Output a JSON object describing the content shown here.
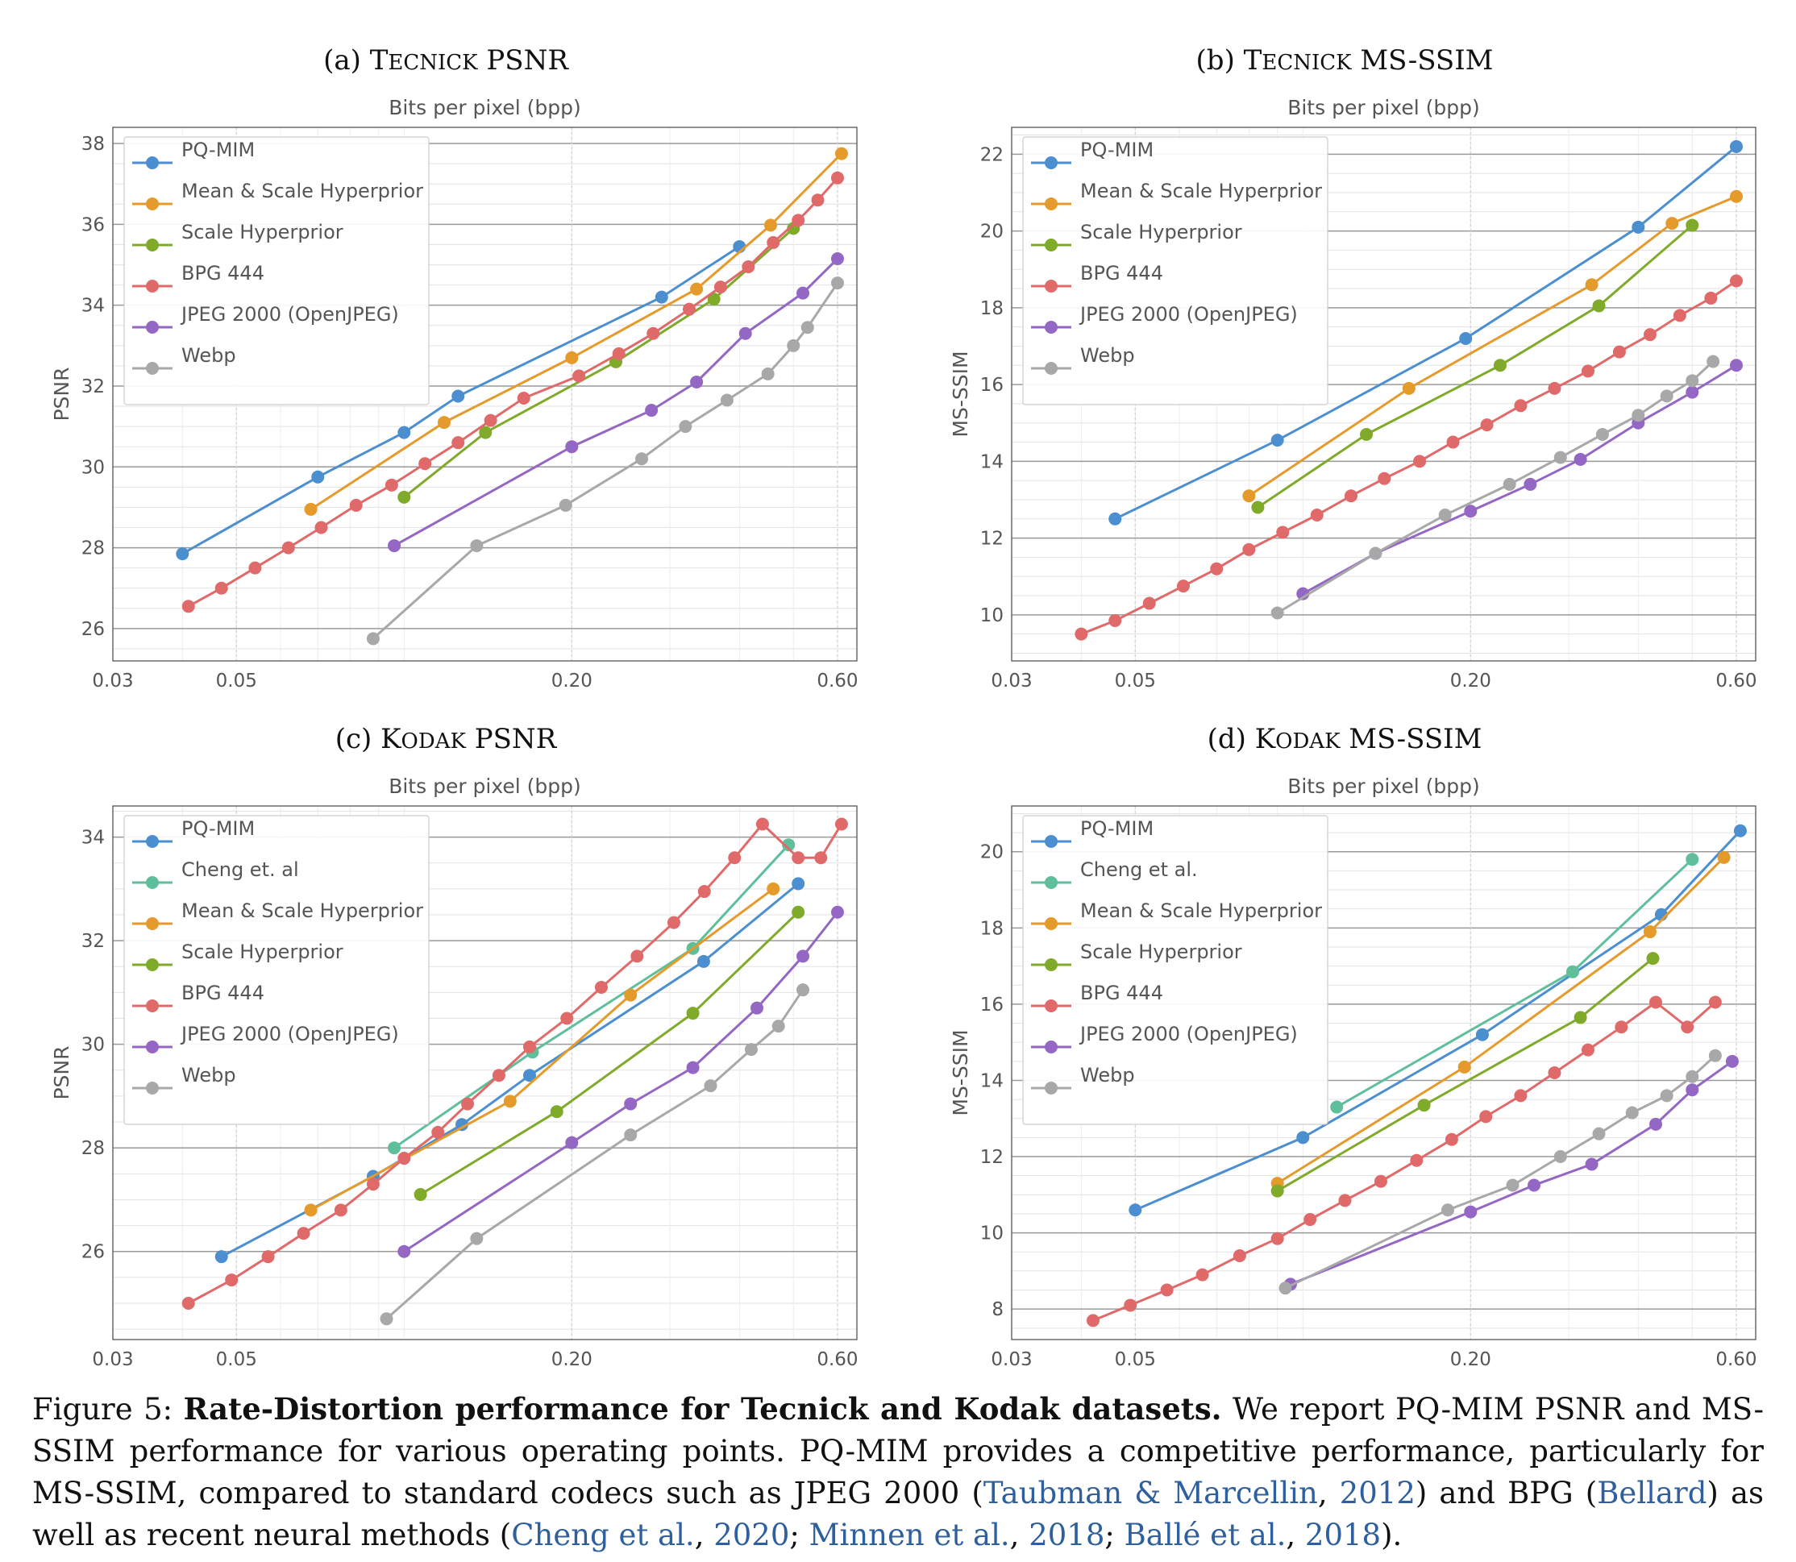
{
  "colors": {
    "PQ-MIM": "#4c8fd0",
    "Cheng": "#5fbf9a",
    "Mean & Scale Hyperprior": "#e59a2c",
    "Scale Hyperprior": "#7faa2a",
    "BPG 444": "#e06a6a",
    "JPEG 2000 (OpenJPEG)": "#9467c4",
    "Webp": "#a8a8a8"
  },
  "chart_data": [
    {
      "id": "a",
      "type": "line",
      "title": "(a) TECNICK PSNR",
      "xlabel": "Bits per pixel (bpp)",
      "ylabel": "PSNR",
      "xscale": "log",
      "xlim": [
        0.03,
        0.65
      ],
      "ylim": [
        25.2,
        38.4
      ],
      "xticks": [
        0.03,
        0.05,
        0.2,
        0.6
      ],
      "xtick_labels": [
        "0.03",
        "0.05",
        "0.20",
        "0.60"
      ],
      "yticks": [
        26,
        28,
        30,
        32,
        34,
        36,
        38
      ],
      "ytick_labels": [
        "26",
        "28",
        "30",
        "32",
        "34",
        "36",
        "38"
      ],
      "legend_position": "upper-left",
      "grid": true,
      "series": [
        {
          "name": "PQ-MIM",
          "x": [
            0.04,
            0.07,
            0.1,
            0.125,
            0.29,
            0.4
          ],
          "y": [
            27.85,
            29.75,
            30.85,
            31.75,
            34.2,
            35.45
          ]
        },
        {
          "name": "Mean & Scale Hyperprior",
          "x": [
            0.068,
            0.118,
            0.2,
            0.335,
            0.455,
            0.61
          ],
          "y": [
            28.95,
            31.1,
            32.7,
            34.4,
            35.98,
            37.75
          ]
        },
        {
          "name": "Scale Hyperprior",
          "x": [
            0.1,
            0.14,
            0.24,
            0.36,
            0.5
          ],
          "y": [
            29.25,
            30.85,
            32.6,
            34.15,
            35.9
          ]
        },
        {
          "name": "BPG 444",
          "x": [
            0.041,
            0.047,
            0.054,
            0.062,
            0.071,
            0.082,
            0.095,
            0.109,
            0.125,
            0.143,
            0.164,
            0.206,
            0.243,
            0.28,
            0.325,
            0.37,
            0.415,
            0.46,
            0.51,
            0.553,
            0.6
          ],
          "y": [
            26.55,
            27.0,
            27.5,
            28.0,
            28.5,
            29.05,
            29.55,
            30.08,
            30.6,
            31.15,
            31.7,
            32.25,
            32.8,
            33.3,
            33.9,
            34.45,
            34.95,
            35.55,
            36.1,
            36.6,
            37.15
          ]
        },
        {
          "name": "JPEG 2000 (OpenJPEG)",
          "x": [
            0.096,
            0.2,
            0.278,
            0.335,
            0.41,
            0.52,
            0.6
          ],
          "y": [
            28.05,
            30.5,
            31.4,
            32.1,
            33.3,
            34.3,
            35.15
          ]
        },
        {
          "name": "Webp",
          "x": [
            0.088,
            0.135,
            0.195,
            0.267,
            0.32,
            0.38,
            0.45,
            0.5,
            0.53,
            0.6
          ],
          "y": [
            25.75,
            28.05,
            29.05,
            30.2,
            31.0,
            31.65,
            32.3,
            33.0,
            33.45,
            34.55
          ]
        }
      ]
    },
    {
      "id": "b",
      "type": "line",
      "title": "(b) TECNICK MS-SSIM",
      "xlabel": "Bits per pixel (bpp)",
      "ylabel": "MS-SSIM",
      "xscale": "log",
      "xlim": [
        0.03,
        0.65
      ],
      "ylim": [
        8.8,
        22.7
      ],
      "xticks": [
        0.03,
        0.05,
        0.2,
        0.6
      ],
      "xtick_labels": [
        "0.03",
        "0.05",
        "0.20",
        "0.60"
      ],
      "yticks": [
        10,
        12,
        14,
        16,
        18,
        20,
        22
      ],
      "ytick_labels": [
        "10",
        "12",
        "14",
        "16",
        "18",
        "20",
        "22"
      ],
      "legend_position": "upper-left",
      "grid": true,
      "series": [
        {
          "name": "PQ-MIM",
          "x": [
            0.046,
            0.09,
            0.196,
            0.4,
            0.6
          ],
          "y": [
            12.5,
            14.55,
            17.2,
            20.1,
            22.2
          ]
        },
        {
          "name": "Mean & Scale Hyperprior",
          "x": [
            0.08,
            0.155,
            0.33,
            0.46,
            0.6
          ],
          "y": [
            13.1,
            15.9,
            18.6,
            20.2,
            20.9
          ]
        },
        {
          "name": "Scale Hyperprior",
          "x": [
            0.083,
            0.13,
            0.226,
            0.34,
            0.5
          ],
          "y": [
            12.8,
            14.7,
            16.5,
            18.05,
            20.15
          ]
        },
        {
          "name": "BPG 444",
          "x": [
            0.04,
            0.046,
            0.053,
            0.061,
            0.07,
            0.08,
            0.092,
            0.106,
            0.122,
            0.14,
            0.162,
            0.186,
            0.214,
            0.246,
            0.283,
            0.325,
            0.37,
            0.42,
            0.475,
            0.54,
            0.6
          ],
          "y": [
            9.5,
            9.85,
            10.3,
            10.75,
            11.2,
            11.7,
            12.15,
            12.6,
            13.1,
            13.55,
            14.0,
            14.5,
            14.95,
            15.45,
            15.9,
            16.35,
            16.85,
            17.3,
            17.8,
            18.25,
            18.7
          ]
        },
        {
          "name": "JPEG 2000 (OpenJPEG)",
          "x": [
            0.1,
            0.135,
            0.2,
            0.256,
            0.315,
            0.4,
            0.5,
            0.6
          ],
          "y": [
            10.55,
            11.6,
            12.7,
            13.4,
            14.05,
            15.0,
            15.8,
            16.5
          ]
        },
        {
          "name": "Webp",
          "x": [
            0.09,
            0.135,
            0.18,
            0.235,
            0.29,
            0.345,
            0.4,
            0.45,
            0.5,
            0.545
          ],
          "y": [
            10.05,
            11.6,
            12.6,
            13.4,
            14.1,
            14.7,
            15.2,
            15.7,
            16.1,
            16.6
          ]
        }
      ]
    },
    {
      "id": "c",
      "type": "line",
      "title": "(c) KODAK PSNR",
      "xlabel": "Bits per pixel (bpp)",
      "ylabel": "PSNR",
      "xscale": "log",
      "xlim": [
        0.03,
        0.65
      ],
      "ylim": [
        24.3,
        34.6
      ],
      "xticks": [
        0.03,
        0.05,
        0.2,
        0.6
      ],
      "xtick_labels": [
        "0.03",
        "0.05",
        "0.20",
        "0.60"
      ],
      "yticks": [
        26,
        28,
        30,
        32,
        34
      ],
      "ytick_labels": [
        "26",
        "28",
        "30",
        "32",
        "34"
      ],
      "legend_position": "upper-left",
      "grid": true,
      "series": [
        {
          "name": "PQ-MIM",
          "x": [
            0.047,
            0.088,
            0.127,
            0.168,
            0.345,
            0.51
          ],
          "y": [
            25.9,
            27.45,
            28.45,
            29.4,
            31.6,
            33.1
          ]
        },
        {
          "name": "Cheng et. al",
          "x": [
            0.096,
            0.17,
            0.33,
            0.49
          ],
          "y": [
            28.0,
            29.85,
            31.85,
            33.85
          ]
        },
        {
          "name": "Mean & Scale Hyperprior",
          "x": [
            0.068,
            0.155,
            0.255,
            0.46
          ],
          "y": [
            26.8,
            28.9,
            30.95,
            33.0
          ]
        },
        {
          "name": "Scale Hyperprior",
          "x": [
            0.107,
            0.188,
            0.33,
            0.51
          ],
          "y": [
            27.1,
            28.7,
            30.6,
            32.55
          ]
        },
        {
          "name": "BPG 444",
          "x": [
            0.041,
            0.049,
            0.057,
            0.066,
            0.077,
            0.088,
            0.1,
            0.115,
            0.13,
            0.148,
            0.168,
            0.196,
            0.226,
            0.262,
            0.305,
            0.346,
            0.392,
            0.44,
            0.51,
            0.56,
            0.61
          ],
          "y": [
            25.0,
            25.45,
            25.9,
            26.35,
            26.8,
            27.3,
            27.8,
            28.3,
            28.85,
            29.4,
            29.95,
            30.5,
            31.1,
            31.7,
            32.35,
            32.95,
            33.6,
            34.25,
            33.6,
            33.6,
            34.25
          ]
        },
        {
          "name": "JPEG 2000 (OpenJPEG)",
          "x": [
            0.1,
            0.2,
            0.255,
            0.33,
            0.43,
            0.52,
            0.6
          ],
          "y": [
            26.0,
            28.1,
            28.85,
            29.55,
            30.7,
            31.7,
            32.55
          ]
        },
        {
          "name": "Webp",
          "x": [
            0.093,
            0.135,
            0.255,
            0.355,
            0.42,
            0.47,
            0.52
          ],
          "y": [
            24.7,
            26.25,
            28.25,
            29.2,
            29.9,
            30.35,
            31.05
          ]
        }
      ]
    },
    {
      "id": "d",
      "type": "line",
      "title": "(d) KODAK MS-SSIM",
      "xlabel": "Bits per pixel (bpp)",
      "ylabel": "MS-SSIM",
      "xscale": "log",
      "xlim": [
        0.03,
        0.65
      ],
      "ylim": [
        7.2,
        21.2
      ],
      "xticks": [
        0.03,
        0.05,
        0.2,
        0.6
      ],
      "xtick_labels": [
        "0.03",
        "0.05",
        "0.20",
        "0.60"
      ],
      "yticks": [
        8,
        10,
        12,
        14,
        16,
        18,
        20
      ],
      "ytick_labels": [
        "8",
        "10",
        "12",
        "14",
        "16",
        "18",
        "20"
      ],
      "legend_position": "upper-left",
      "grid": true,
      "series": [
        {
          "name": "PQ-MIM",
          "x": [
            0.05,
            0.1,
            0.21,
            0.44,
            0.61
          ],
          "y": [
            10.6,
            12.5,
            15.2,
            18.35,
            20.55
          ]
        },
        {
          "name": "Cheng et al.",
          "x": [
            0.115,
            0.305,
            0.5
          ],
          "y": [
            13.3,
            16.85,
            19.8
          ]
        },
        {
          "name": "Mean & Scale Hyperprior",
          "x": [
            0.09,
            0.195,
            0.42,
            0.57
          ],
          "y": [
            11.3,
            14.35,
            17.9,
            19.85
          ]
        },
        {
          "name": "Scale Hyperprior",
          "x": [
            0.09,
            0.165,
            0.315,
            0.425
          ],
          "y": [
            11.1,
            13.35,
            15.65,
            17.2
          ]
        },
        {
          "name": "BPG 444",
          "x": [
            0.042,
            0.049,
            0.057,
            0.066,
            0.077,
            0.09,
            0.103,
            0.119,
            0.138,
            0.16,
            0.185,
            0.213,
            0.246,
            0.283,
            0.325,
            0.373,
            0.43,
            0.49,
            0.55
          ],
          "y": [
            7.7,
            8.1,
            8.5,
            8.9,
            9.4,
            9.85,
            10.35,
            10.85,
            11.35,
            11.9,
            12.45,
            13.05,
            13.6,
            14.2,
            14.8,
            15.4,
            16.05,
            15.4,
            16.05
          ]
        },
        {
          "name": "JPEG 2000 (OpenJPEG)",
          "x": [
            0.095,
            0.2,
            0.26,
            0.33,
            0.43,
            0.5,
            0.59
          ],
          "y": [
            8.65,
            10.55,
            11.25,
            11.8,
            12.85,
            13.75,
            14.5
          ]
        },
        {
          "name": "Webp",
          "x": [
            0.093,
            0.182,
            0.238,
            0.29,
            0.34,
            0.39,
            0.45,
            0.5,
            0.55
          ],
          "y": [
            8.55,
            10.6,
            11.25,
            12.0,
            12.6,
            13.15,
            13.6,
            14.1,
            14.65
          ]
        }
      ]
    }
  ],
  "caption": {
    "label": "Figure 5: ",
    "lead": "Rate-Distortion performance for Tecnick and Kodak datasets.",
    "text_1": " We report PQ-MIM PSNR and MS-SSIM performance for various operating points. PQ-MIM provides a competitive performance, particularly for MS-SSIM, compared to standard codecs such as JPEG 2000 (",
    "cite_1": "Taubman & Marcellin",
    "sep_1": ", ",
    "cite_1_year": "2012",
    "text_2": ") and BPG (",
    "cite_2": "Bellard",
    "text_3": ") as well as recent neural methods (",
    "cite_3": "Cheng et al.",
    "sep_3": ", ",
    "cite_3_year": "2020",
    "sep_4": "; ",
    "cite_4": "Minnen et al.",
    "sep_5": ", ",
    "cite_4_year": "2018",
    "sep_6": "; ",
    "cite_5": "Ballé et al.",
    "sep_7": ", ",
    "cite_5_year": "2018",
    "text_4": ")."
  }
}
